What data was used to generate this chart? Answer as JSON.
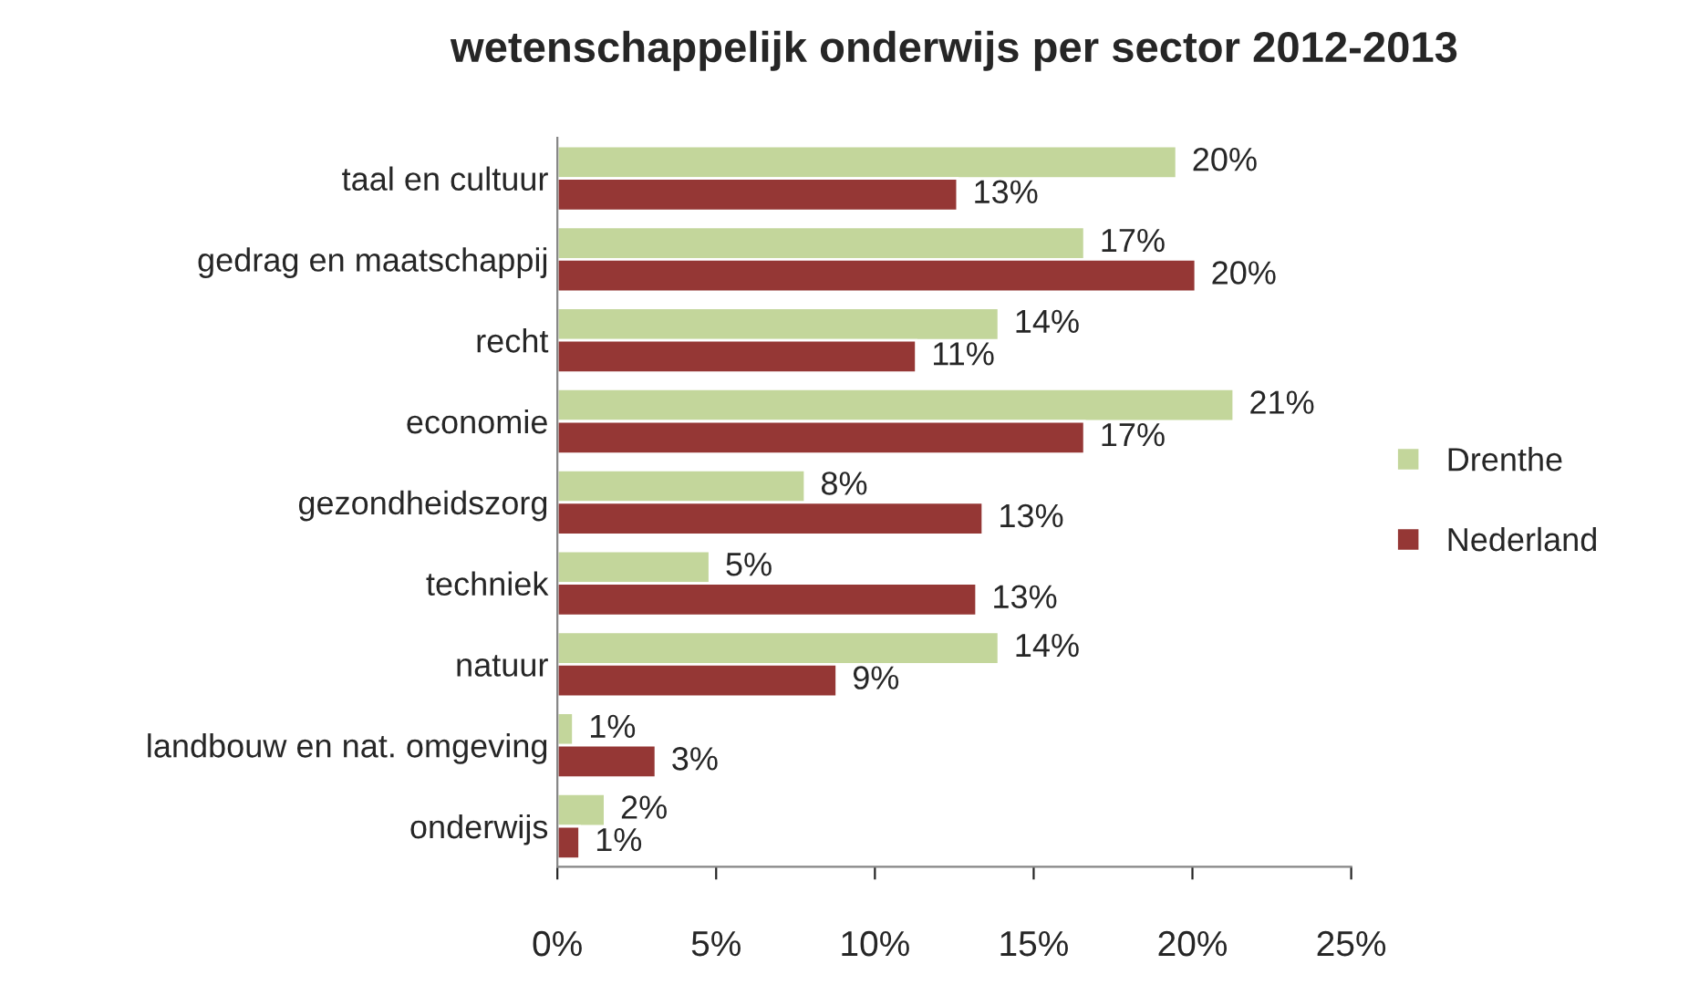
{
  "chart_data": {
    "type": "bar",
    "orientation": "horizontal",
    "title": "wetenschappelijk onderwijs per sector 2012-2013",
    "categories": [
      "taal en cultuur",
      "gedrag en maatschappij",
      "recht",
      "economie",
      "gezondheidszorg",
      "techniek",
      "natuur",
      "landbouw en nat. omgeving",
      "onderwijs"
    ],
    "series": [
      {
        "name": "Drenthe",
        "color": "#c3d69b",
        "values": [
          19.5,
          16.6,
          13.9,
          21.3,
          7.8,
          4.8,
          13.9,
          0.5,
          1.5
        ],
        "value_labels": [
          "20%",
          "17%",
          "14%",
          "21%",
          "8%",
          "5%",
          "14%",
          "1%",
          "2%"
        ]
      },
      {
        "name": "Nederland",
        "color": "#953735",
        "values": [
          12.6,
          20.1,
          11.3,
          16.6,
          13.4,
          13.2,
          8.8,
          3.1,
          0.7
        ],
        "value_labels": [
          "13%",
          "20%",
          "11%",
          "17%",
          "13%",
          "13%",
          "9%",
          "3%",
          "1%"
        ]
      }
    ],
    "xlim": [
      0,
      25
    ],
    "xticks": [
      {
        "value": 0,
        "label": "0%"
      },
      {
        "value": 5,
        "label": "5%"
      },
      {
        "value": 10,
        "label": "10%"
      },
      {
        "value": 15,
        "label": "15%"
      },
      {
        "value": 20,
        "label": "20%"
      },
      {
        "value": 25,
        "label": "25%"
      }
    ],
    "grid": false,
    "legend": "right"
  }
}
